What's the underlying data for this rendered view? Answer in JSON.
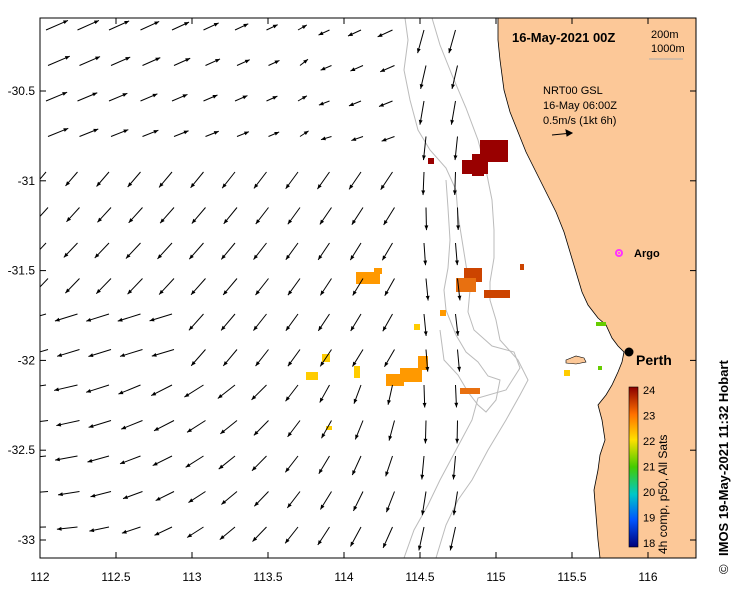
{
  "map": {
    "timestamp": "16-May-2021 00Z",
    "depth_contours": [
      "200m",
      "1000m"
    ],
    "legend": {
      "product": "NRT00 GSL",
      "time": "16-May 06:00Z",
      "scale": "0.5m/s (1kt 6h)"
    },
    "labels": {
      "argo": "Argo",
      "perth": "Perth"
    },
    "x_ticks": [
      "112",
      "112.5",
      "113",
      "113.5",
      "114",
      "114.5",
      "115",
      "115.5",
      "116"
    ],
    "y_ticks": [
      "-30.5",
      "-31",
      "-31.5",
      "-32",
      "-32.5",
      "-33"
    ],
    "lon_values": [
      112,
      112.5,
      113,
      113.5,
      114,
      114.5,
      115,
      115.5,
      116
    ],
    "lat_values": [
      -30.5,
      -31,
      -31.5,
      -32,
      -32.5,
      -33
    ],
    "colorbar": {
      "ticks": [
        "24",
        "23",
        "22",
        "21",
        "20",
        "19",
        "18"
      ],
      "title": "4h comp, p50, All Sats"
    },
    "credit": "IMOS 19-May-2021 11:32 Hobart",
    "copyright": "©",
    "colors": {
      "land": "#fcc898",
      "argo": "#ff33ff",
      "contour": "#bbbbbb"
    }
  }
}
